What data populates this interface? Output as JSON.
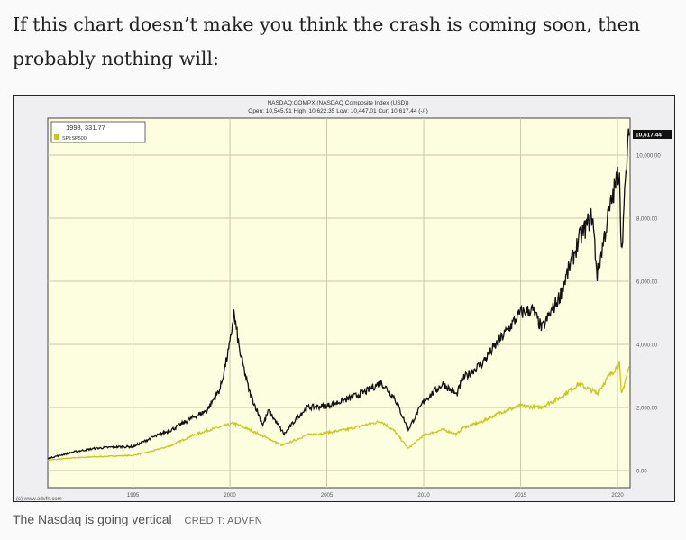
{
  "article": {
    "headline": "If this chart doesn’t make you think the crash is coming soon, then probably nothing will:",
    "caption": "The Nasdaq is going vertical",
    "credit": "CREDIT: ADVFN"
  },
  "chart_data": {
    "type": "line",
    "title": "NASDAQ:COMPX (NASDAQ Composite Index (USD))",
    "subtitle": "Open: 10,545.91 High: 10,622.35 Low: 10,447.01 Cur: 10,617.44 (-/-)",
    "legend_box": {
      "readout": "1998, 331.77",
      "entry": "SPI:SP500"
    },
    "legend_placement": "top-left",
    "current_label": "10,617.44",
    "watermark": "(c) www.advfn.com",
    "xlim": [
      1990.6,
      2020.65
    ],
    "ylim": [
      0,
      10800
    ],
    "x_ticks": [
      1995,
      2000,
      2005,
      2010,
      2015,
      2020
    ],
    "x_tick_labels": [
      "1995",
      "2000",
      "2005",
      "2010",
      "2015",
      "2020"
    ],
    "y_ticks": [
      0,
      2000,
      4000,
      6000,
      8000,
      10000
    ],
    "y_tick_labels": [
      "0.00",
      "2,000.00",
      "4,000.00",
      "6,000.00",
      "8,000.00",
      "10,000.00"
    ],
    "grid": true,
    "colors": {
      "plot_bg": "#fdfde0",
      "nasdaq": "#111111",
      "sp500": "#c8c81a"
    },
    "series": [
      {
        "name": "NASDAQ:COMPX",
        "x": [
          1990.6,
          1991,
          1992,
          1993,
          1994,
          1995,
          1996,
          1997,
          1998,
          1998.8,
          1999.5,
          2000.0,
          2000.2,
          2000.5,
          2001,
          2001.7,
          2002,
          2002.8,
          2003.5,
          2004,
          2005,
          2006,
          2007,
          2007.8,
          2008.5,
          2009.2,
          2010,
          2011,
          2011.7,
          2012,
          2013,
          2014,
          2015,
          2015.6,
          2016.1,
          2017,
          2018,
          2018.7,
          2018.95,
          2019.5,
          2020.1,
          2020.2,
          2020.5,
          2020.6
        ],
        "y": [
          380,
          450,
          600,
          700,
          750,
          760,
          1050,
          1300,
          1650,
          1900,
          2600,
          4000,
          5000,
          3800,
          2500,
          1450,
          1900,
          1150,
          1700,
          2000,
          2050,
          2250,
          2500,
          2800,
          2300,
          1300,
          2200,
          2750,
          2400,
          2900,
          3400,
          4200,
          5000,
          5100,
          4500,
          5500,
          7300,
          8100,
          6200,
          8000,
          9600,
          6900,
          10000,
          10617
        ]
      },
      {
        "name": "SPI:SP500",
        "x": [
          1990.6,
          1992,
          1994,
          1995,
          1996,
          1997,
          1998,
          1999,
          2000.2,
          2001,
          2002.7,
          2003.5,
          2004,
          2005,
          2006,
          2007,
          2007.8,
          2008.5,
          2009.2,
          2010,
          2011,
          2011.7,
          2012,
          2013,
          2014,
          2015,
          2016,
          2017,
          2018,
          2018.95,
          2019.5,
          2020.1,
          2020.2,
          2020.6
        ],
        "y": [
          330,
          410,
          460,
          480,
          620,
          800,
          1100,
          1300,
          1500,
          1300,
          800,
          1000,
          1130,
          1200,
          1300,
          1450,
          1560,
          1250,
          700,
          1120,
          1300,
          1150,
          1350,
          1550,
          1850,
          2050,
          2000,
          2300,
          2750,
          2450,
          2950,
          3380,
          2400,
          3300
        ]
      }
    ]
  }
}
